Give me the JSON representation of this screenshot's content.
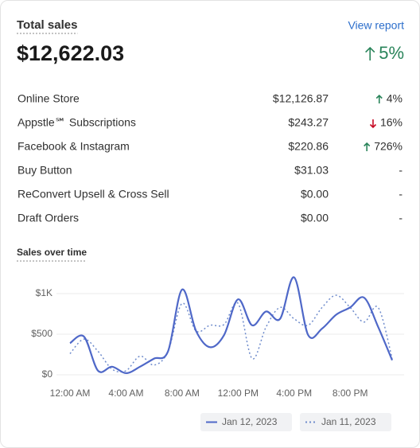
{
  "header": {
    "title": "Total sales",
    "link": "View report",
    "total": "$12,622.03",
    "change": "5%",
    "direction": "up"
  },
  "table": {
    "rows": [
      {
        "channel": "Online Store",
        "amount": "$12,126.87",
        "change": "4%",
        "direction": "up"
      },
      {
        "channel": "Appstle℠ Subscriptions",
        "amount": "$243.27",
        "change": "16%",
        "direction": "down"
      },
      {
        "channel": "Facebook & Instagram",
        "amount": "$220.86",
        "change": "726%",
        "direction": "up"
      },
      {
        "channel": "Buy Button",
        "amount": "$31.03",
        "change": "-"
      },
      {
        "channel": "ReConvert Upsell & Cross Sell",
        "amount": "$0.00",
        "change": "-"
      },
      {
        "channel": "Draft Orders",
        "amount": "$0.00",
        "change": "-"
      }
    ]
  },
  "chart_data": {
    "type": "line",
    "title": "Sales over time",
    "categories": [
      "12:00 AM",
      null,
      null,
      null,
      "4:00 AM",
      null,
      null,
      null,
      "8:00 AM",
      null,
      null,
      null,
      "12:00 PM",
      null,
      null,
      null,
      "4:00 PM",
      null,
      null,
      null,
      "8:00 PM",
      null,
      null,
      null
    ],
    "series": [
      {
        "name": "Jan 12, 2023",
        "color": "#4f68c8",
        "dashed": false,
        "values": [
          390,
          470,
          50,
          100,
          20,
          100,
          200,
          290,
          1050,
          540,
          340,
          490,
          930,
          610,
          780,
          690,
          1200,
          490,
          570,
          740,
          830,
          950,
          590,
          180
        ]
      },
      {
        "name": "Jan 11, 2023",
        "color": "#6f8ccc",
        "dashed": true,
        "values": [
          260,
          440,
          290,
          70,
          50,
          230,
          120,
          290,
          880,
          540,
          610,
          620,
          880,
          200,
          590,
          830,
          690,
          610,
          830,
          980,
          830,
          650,
          830,
          200
        ]
      }
    ],
    "ylim": [
      0,
      1250
    ],
    "yticks": [
      {
        "value": 0,
        "label": "$0"
      },
      {
        "value": 500,
        "label": "$500"
      },
      {
        "value": 1000,
        "label": "$1K"
      }
    ],
    "grid": true
  }
}
